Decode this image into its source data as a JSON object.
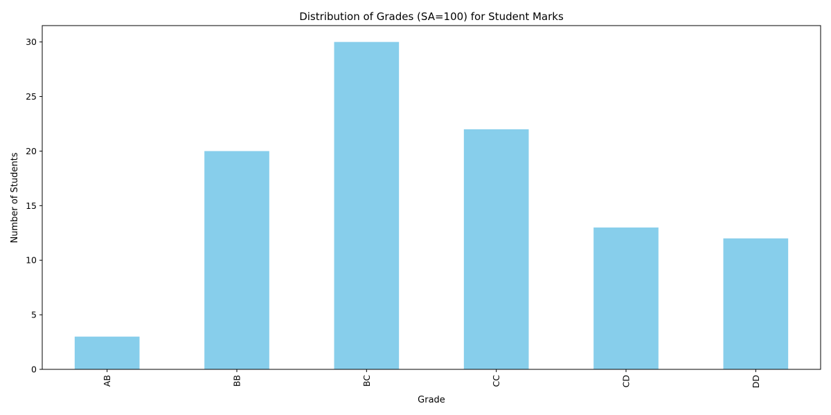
{
  "chart_data": {
    "type": "bar",
    "title": "Distribution of Grades (SA=100) for Student Marks",
    "xlabel": "Grade",
    "ylabel": "Number of Students",
    "categories": [
      "AB",
      "BB",
      "BC",
      "CC",
      "CD",
      "DD"
    ],
    "values": [
      3,
      20,
      30,
      22,
      13,
      12
    ],
    "ylim": [
      0,
      31.5
    ],
    "yticks": [
      0,
      5,
      10,
      15,
      20,
      25,
      30
    ],
    "xtick_rotation": "vertical",
    "grid": false,
    "legend": "none",
    "bar_color": "#87CEEB"
  }
}
